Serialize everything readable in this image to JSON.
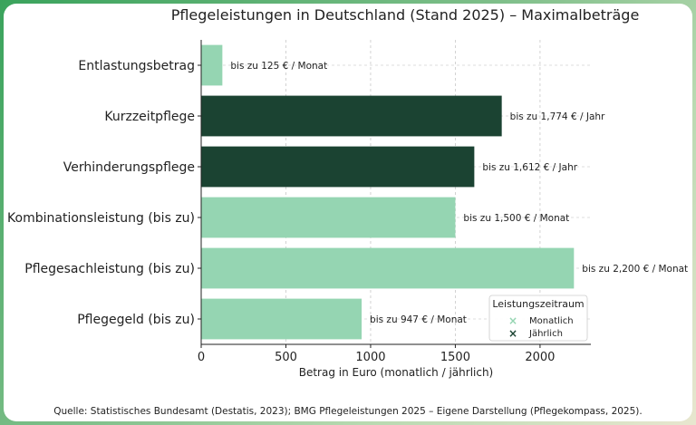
{
  "chart_data": {
    "type": "bar",
    "orientation": "horizontal",
    "title": "Pflegeleistungen in Deutschland (Stand 2025) – Maximalbeträge",
    "xlabel": "Betrag in Euro (monatlich / jährlich)",
    "ylabel": "",
    "xlim": [
      0,
      2300
    ],
    "xticks": [
      0,
      500,
      1000,
      1500,
      2000
    ],
    "grid": true,
    "categories": [
      "Entlastungsbetrag",
      "Kurzzeitpflege",
      "Verhinderungspflege",
      "Kombinationsleistung (bis zu)",
      "Pflegesachleistung (bis zu)",
      "Pflegegeld (bis zu)"
    ],
    "values": [
      125,
      1774,
      1612,
      1500,
      2200,
      947
    ],
    "period": [
      "Monatlich",
      "Jährlich",
      "Jährlich",
      "Monatlich",
      "Monatlich",
      "Monatlich"
    ],
    "data_labels": [
      "bis zu 125 € / Monat",
      "bis zu 1,774 € / Jahr",
      "bis zu 1,612 € / Jahr",
      "bis zu 1,500 € / Monat",
      "bis zu 2,200 € / Monat",
      "bis zu 947 € / Monat"
    ],
    "legend": {
      "title": "Leistungszeitraum",
      "placement": "lower-right",
      "entries": [
        {
          "label": "Monatlich",
          "color": "#95d5b2"
        },
        {
          "label": "Jährlich",
          "color": "#1b4332"
        }
      ]
    },
    "colors": {
      "Monatlich": "#95d5b2",
      "Jährlich": "#1b4332"
    }
  },
  "source_note": "Quelle: Statistisches Bundesamt (Destatis, 2023); BMG Pflegeleistungen 2025 – Eigene Darstellung (Pflegekompass, 2025)."
}
